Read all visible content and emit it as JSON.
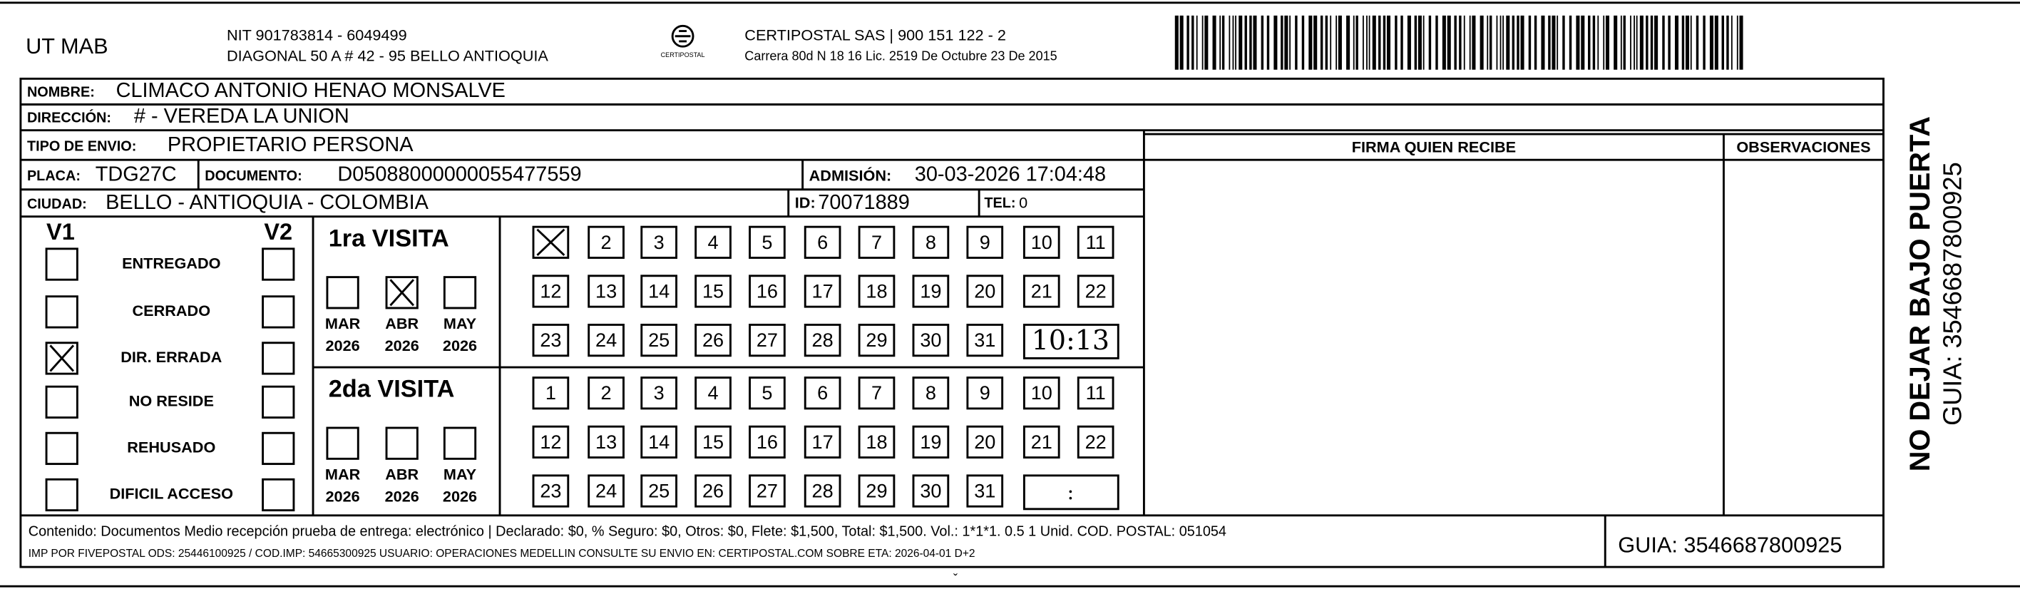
{
  "header": {
    "sender": "UT MAB",
    "nit": "NIT 901783814 - 6049499",
    "address": "DIAGONAL 50 A # 42 - 95  BELLO  ANTIOQUIA",
    "logo_text": "CERTIPOSTAL",
    "company": "CERTIPOSTAL SAS | 900 151 122 - 2",
    "license": "Carrera 80d N 18 16  Lic. 2519 De Octubre 23 De 2015"
  },
  "recipient": {
    "nombre_label": "NOMBRE:",
    "nombre": "CLIMACO ANTONIO HENAO MONSALVE",
    "direccion_label": "DIRECCIÓN:",
    "direccion": "# - VEREDA LA UNION",
    "tipo_label": "TIPO DE ENVIO:",
    "tipo": "PROPIETARIO PERSONA",
    "placa_label": "PLACA:",
    "placa": "TDG27C",
    "documento_label": "DOCUMENTO:",
    "documento": "D05088000000055477559",
    "admision_label": "ADMISIÓN:",
    "admision": "30-03-2026 17:04:48",
    "ciudad_label": "CIUDAD:",
    "ciudad": "BELLO - ANTIOQUIA - COLOMBIA",
    "id_label": "ID:",
    "id": "70071889",
    "tel_label": "TEL:",
    "tel": "0"
  },
  "columns": {
    "firma": "FIRMA QUIEN RECIBE",
    "observaciones": "OBSERVACIONES"
  },
  "status": {
    "v1": "V1",
    "v2": "V2",
    "options": [
      "ENTREGADO",
      "CERRADO",
      "DIR. ERRADA",
      "NO RESIDE",
      "REHUSADO",
      "DIFICIL ACCESO"
    ]
  },
  "visits": [
    {
      "title": "1ra VISITA",
      "months": [
        {
          "label": "MAR",
          "year": "2026"
        },
        {
          "label": "ABR",
          "year": "2026"
        },
        {
          "label": "MAY",
          "year": "2026"
        }
      ],
      "days": [
        null,
        2,
        3,
        4,
        5,
        6,
        7,
        8,
        9,
        10,
        11,
        12,
        13,
        14,
        15,
        16,
        17,
        18,
        19,
        20,
        21,
        22,
        23,
        24,
        25,
        26,
        27,
        28,
        29,
        30,
        31
      ],
      "time": "10:13"
    },
    {
      "title": "2da VISITA",
      "months": [
        {
          "label": "MAR",
          "year": "2026"
        },
        {
          "label": "ABR",
          "year": "2026"
        },
        {
          "label": "MAY",
          "year": "2026"
        }
      ],
      "days": [
        1,
        2,
        3,
        4,
        5,
        6,
        7,
        8,
        9,
        10,
        11,
        12,
        13,
        14,
        15,
        16,
        17,
        18,
        19,
        20,
        21,
        22,
        23,
        24,
        25,
        26,
        27,
        28,
        29,
        30,
        31
      ],
      "time": ":"
    }
  ],
  "footer": {
    "contenido": "Contenido: Documentos Medio recepción prueba de entrega: electrónico | Declarado: $0, % Seguro: $0, Otros: $0, Flete: $1,500, Total: $1,500. Vol.: 1*1*1. 0.5  1 Unid. COD. POSTAL: 051054",
    "imp": "IMP POR FIVEPOSTAL ODS: 25446100925 / COD.IMP: 54665300925 USUARIO: OPERACIONES MEDELLIN CONSULTE SU ENVIO EN: CERTIPOSTAL.COM SOBRE ETA: 2026-04-01 D+2",
    "guia": "GUIA: 3546687800925"
  },
  "side": {
    "warning": "NO DEJAR BAJO PUERTA",
    "guia": "GUIA: 3546687800925"
  }
}
